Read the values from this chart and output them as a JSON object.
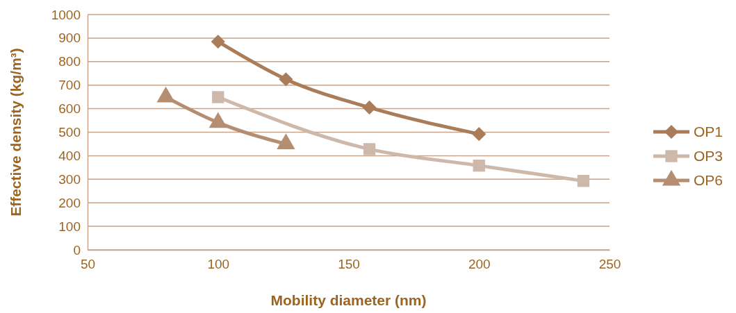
{
  "chart_data": {
    "type": "line",
    "xlabel": "Mobility diameter (nm)",
    "ylabel": "Effective density (kg/m³)",
    "xlim": [
      50,
      250
    ],
    "xticks": [
      50,
      100,
      150,
      200,
      250
    ],
    "ylim": [
      0,
      1000
    ],
    "yticks": [
      0,
      100,
      200,
      300,
      400,
      500,
      600,
      700,
      800,
      900,
      1000
    ],
    "grid": "y",
    "legend": "right",
    "line_style": "solid",
    "series": [
      {
        "name": "OP1",
        "color": "#a97c5a",
        "marker": "diamond",
        "x": [
          100,
          126,
          158,
          200
        ],
        "values": [
          885,
          725,
          605,
          492
        ]
      },
      {
        "name": "OP3",
        "color": "#cdb8aa",
        "marker": "square",
        "x": [
          100,
          158,
          200,
          240
        ],
        "values": [
          649,
          428,
          358,
          293
        ]
      },
      {
        "name": "OP6",
        "color": "#b58e72",
        "marker": "triangle",
        "x": [
          80,
          100,
          126
        ],
        "values": [
          649,
          541,
          450
        ]
      }
    ]
  }
}
